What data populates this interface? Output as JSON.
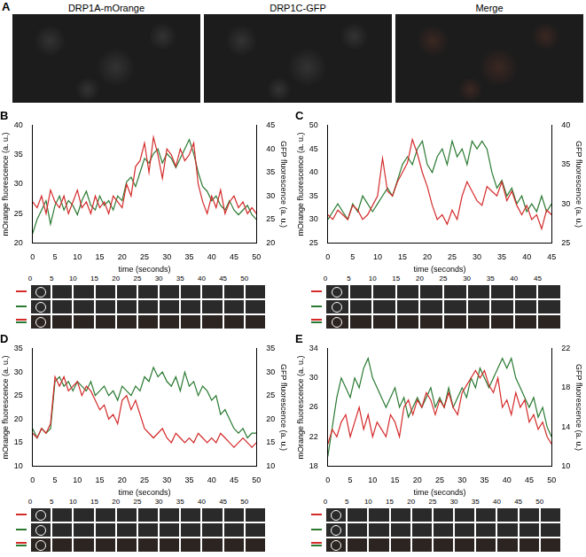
{
  "panel_a": {
    "label": "A",
    "images": [
      "DRP1A-mOrange",
      "DRP1C-GFP",
      "Merge"
    ]
  },
  "chart_data": [
    {
      "type": "line",
      "title": "B",
      "x_label": "time (seconds)",
      "y_label": "mOrange fluorescence (a. u.)",
      "y2_label": "GFP fluorescence (a. u.)",
      "x": [
        0,
        1,
        2,
        3,
        4,
        5,
        6,
        7,
        8,
        9,
        10,
        11,
        12,
        13,
        14,
        15,
        16,
        17,
        18,
        19,
        20,
        21,
        22,
        23,
        24,
        25,
        26,
        27,
        28,
        29,
        30,
        31,
        32,
        33,
        34,
        35,
        36,
        37,
        38,
        39,
        40,
        41,
        42,
        43,
        44,
        45,
        46,
        47,
        48,
        49,
        50
      ],
      "xlim": [
        0,
        50
      ],
      "xticks": [
        0,
        5,
        10,
        15,
        20,
        25,
        30,
        35,
        40,
        45,
        50
      ],
      "ylim": [
        20,
        40
      ],
      "yticks": [
        20,
        25,
        30,
        35,
        40
      ],
      "y2lim": [
        20,
        45
      ],
      "y2ticks": [
        20,
        25,
        30,
        35,
        40,
        45
      ],
      "grid": false,
      "series": [
        {
          "color": "#d42a2a",
          "axis": "y",
          "values": [
            27,
            26,
            28,
            25,
            29,
            27,
            26,
            28,
            25,
            27,
            29,
            26,
            27,
            25,
            28,
            26,
            27,
            25,
            28,
            27,
            26,
            30,
            28,
            33,
            34,
            37,
            32,
            38,
            35,
            31,
            36,
            35,
            33,
            36,
            34,
            35,
            37,
            30,
            27,
            25,
            28,
            26,
            29,
            25,
            27,
            28,
            26,
            27,
            25,
            26,
            25
          ]
        },
        {
          "color": "#2a7a32",
          "axis": "y2",
          "values": [
            22,
            25,
            27,
            29,
            24,
            28,
            30,
            27,
            29,
            28,
            26,
            29,
            31,
            28,
            27,
            30,
            28,
            29,
            27,
            30,
            29,
            33,
            34,
            32,
            35,
            38,
            37,
            39,
            40,
            37,
            39,
            38,
            36,
            38,
            40,
            42,
            39,
            35,
            32,
            31,
            29,
            30,
            28,
            27,
            29,
            27,
            26,
            27,
            28,
            26,
            25
          ]
        }
      ]
    },
    {
      "type": "line",
      "title": "C",
      "x_label": "time (seconds)",
      "y_label": "mOrange fluorescence (a. u.)",
      "y2_label": "GFP fluorescence (a. u.)",
      "x": [
        0,
        1,
        2,
        3,
        4,
        5,
        6,
        7,
        8,
        9,
        10,
        11,
        12,
        13,
        14,
        15,
        16,
        17,
        18,
        19,
        20,
        21,
        22,
        23,
        24,
        25,
        26,
        27,
        28,
        29,
        30,
        31,
        32,
        33,
        34,
        35,
        36,
        37,
        38,
        39,
        40,
        41,
        42,
        43,
        44,
        45
      ],
      "xlim": [
        0,
        45
      ],
      "xticks": [
        0,
        5,
        10,
        15,
        20,
        25,
        30,
        35,
        40,
        45
      ],
      "ylim": [
        25,
        50
      ],
      "yticks": [
        25,
        30,
        35,
        40,
        45,
        50
      ],
      "y2lim": [
        25,
        40
      ],
      "y2ticks": [
        25,
        30,
        35,
        40
      ],
      "grid": false,
      "series": [
        {
          "color": "#d42a2a",
          "axis": "y",
          "values": [
            31,
            30,
            32,
            31,
            30,
            33,
            32,
            30,
            31,
            33,
            35,
            43,
            36,
            35,
            38,
            40,
            42,
            47,
            44,
            40,
            37,
            33,
            30,
            31,
            29,
            32,
            30,
            35,
            38,
            36,
            34,
            33,
            37,
            36,
            35,
            38,
            34,
            36,
            33,
            31,
            33,
            30,
            31,
            28,
            32,
            31
          ]
        },
        {
          "color": "#2a7a32",
          "axis": "y2",
          "values": [
            28,
            29,
            30,
            29,
            28,
            30,
            29,
            31,
            30,
            29,
            30,
            31,
            32,
            31,
            33,
            35,
            36,
            35,
            37,
            38,
            35,
            34,
            36,
            37,
            35,
            38,
            36,
            37,
            35,
            38,
            37,
            38,
            37,
            34,
            32,
            33,
            31,
            32,
            30,
            31,
            29,
            30,
            29,
            31,
            29,
            30
          ]
        }
      ]
    },
    {
      "type": "line",
      "title": "D",
      "x_label": "time (seconds)",
      "y_label": "mOrange fluorescence (a. u.)",
      "y2_label": "GFP fluorescence (a. u.)",
      "x": [
        0,
        1,
        2,
        3,
        4,
        5,
        6,
        7,
        8,
        9,
        10,
        11,
        12,
        13,
        14,
        15,
        16,
        17,
        18,
        19,
        20,
        21,
        22,
        23,
        24,
        25,
        26,
        27,
        28,
        29,
        30,
        31,
        32,
        33,
        34,
        35,
        36,
        37,
        38,
        39,
        40,
        41,
        42,
        43,
        44,
        45,
        46,
        47,
        48,
        49,
        50
      ],
      "xlim": [
        0,
        50
      ],
      "xticks": [
        0,
        5,
        10,
        15,
        20,
        25,
        30,
        35,
        40,
        45,
        50
      ],
      "ylim": [
        10,
        35
      ],
      "yticks": [
        10,
        15,
        20,
        25,
        30,
        35
      ],
      "y2lim": [
        10,
        35
      ],
      "y2ticks": [
        10,
        15,
        20,
        25,
        30,
        35
      ],
      "grid": false,
      "series": [
        {
          "color": "#d42a2a",
          "axis": "y",
          "values": [
            17,
            16,
            18,
            17,
            19,
            29,
            27,
            29,
            26,
            27,
            28,
            25,
            27,
            26,
            24,
            22,
            23,
            20,
            21,
            19,
            24,
            25,
            22,
            24,
            21,
            18,
            17,
            16,
            17,
            18,
            16,
            15,
            17,
            16,
            15,
            16,
            15,
            17,
            16,
            15,
            16,
            15,
            17,
            16,
            15,
            14,
            15,
            16,
            15,
            14,
            15
          ]
        },
        {
          "color": "#2a7a32",
          "axis": "y2",
          "values": [
            18,
            16,
            18,
            17,
            18,
            28,
            29,
            27,
            28,
            26,
            28,
            27,
            26,
            28,
            25,
            26,
            27,
            25,
            26,
            24,
            27,
            26,
            25,
            27,
            26,
            29,
            28,
            31,
            29,
            30,
            28,
            27,
            29,
            26,
            30,
            27,
            28,
            25,
            27,
            26,
            24,
            25,
            21,
            22,
            20,
            18,
            17,
            18,
            16,
            17,
            17
          ]
        }
      ]
    },
    {
      "type": "line",
      "title": "E",
      "x_label": "time (seconds)",
      "y_label": "mOrange fluorescence (a. u.)",
      "y2_label": "GFP fluorescence (a. u.)",
      "x": [
        0,
        1,
        2,
        3,
        4,
        5,
        6,
        7,
        8,
        9,
        10,
        11,
        12,
        13,
        14,
        15,
        16,
        17,
        18,
        19,
        20,
        21,
        22,
        23,
        24,
        25,
        26,
        27,
        28,
        29,
        30,
        31,
        32,
        33,
        34,
        35,
        36,
        37,
        38,
        39,
        40,
        41,
        42,
        43,
        44,
        45,
        46,
        47,
        48,
        49,
        50
      ],
      "xlim": [
        0,
        50
      ],
      "xticks": [
        0,
        5,
        10,
        15,
        20,
        25,
        30,
        35,
        40,
        45,
        50
      ],
      "ylim": [
        18,
        34
      ],
      "yticks": [
        18,
        22,
        26,
        30,
        34
      ],
      "y2lim": [
        10,
        22
      ],
      "y2ticks": [
        10,
        14,
        18,
        22
      ],
      "grid": false,
      "series": [
        {
          "color": "#d42a2a",
          "axis": "y",
          "values": [
            21,
            23,
            22,
            24,
            25,
            22,
            24,
            26,
            23,
            25,
            22,
            24,
            23,
            22,
            25,
            24,
            22,
            26,
            27,
            25,
            27,
            26,
            28,
            27,
            25,
            27,
            26,
            28,
            26,
            25,
            28,
            29,
            30,
            31,
            30,
            31,
            29,
            28,
            30,
            26,
            27,
            25,
            28,
            26,
            27,
            24,
            25,
            23,
            24,
            22,
            21
          ]
        },
        {
          "color": "#2a7a32",
          "axis": "y2",
          "values": [
            11,
            14,
            17,
            19,
            18,
            17,
            19,
            18,
            20,
            21,
            19,
            18,
            17,
            16,
            17,
            18,
            16,
            17,
            15,
            16,
            17,
            16,
            17,
            18,
            16,
            17,
            16,
            18,
            16,
            17,
            18,
            17,
            19,
            18,
            20,
            19,
            18,
            19,
            20,
            21,
            20,
            21,
            19,
            18,
            17,
            16,
            17,
            15,
            16,
            14,
            13
          ]
        }
      ]
    }
  ]
}
